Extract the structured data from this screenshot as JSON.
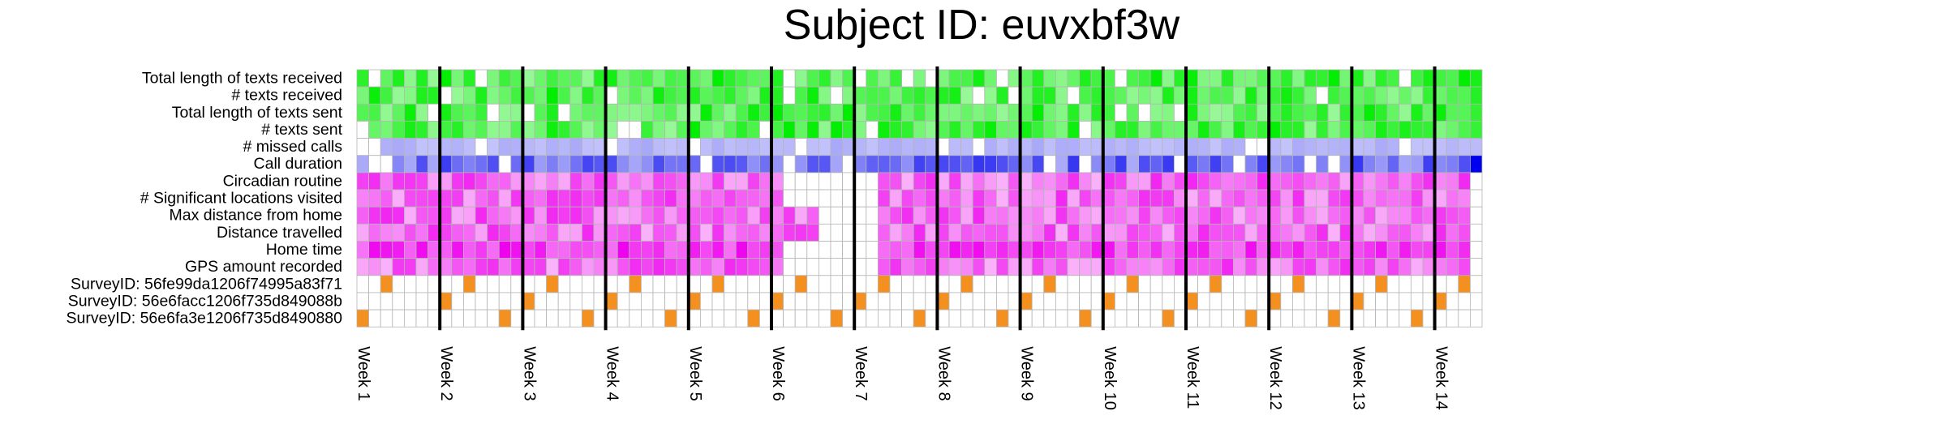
{
  "chart_data": {
    "type": "heatmap",
    "title": "Subject ID: euvxbf3w",
    "rows": [
      "Total length of texts received",
      "# texts received",
      "Total length of texts sent",
      "# texts sent",
      "# missed calls",
      "Call duration",
      "Circadian routine",
      "# Significant locations visited",
      "Max distance from home",
      "Distance travelled",
      "Home time",
      "GPS amount recorded",
      "SurveyID: 56fe99da1206f74995a83f71",
      "SurveyID: 56e6facc1206f735d849088b",
      "SurveyID: 56e6fa3e1206f735d8490880"
    ],
    "weeks": [
      "Week 1",
      "Week 2",
      "Week 3",
      "Week 4",
      "Week 5",
      "Week 6",
      "Week 7",
      "Week 8",
      "Week 9",
      "Week 10",
      "Week 11",
      "Week 12",
      "Week 13",
      "Week 14"
    ],
    "days_per_week": 7,
    "num_days": 95,
    "row_groups": [
      {
        "name": "texts",
        "rows": [
          0,
          1,
          2,
          3
        ],
        "color": "#00ee00"
      },
      {
        "name": "calls",
        "rows": [
          4,
          5
        ],
        "color": "#0000ee"
      },
      {
        "name": "gps",
        "rows": [
          6,
          7,
          8,
          9,
          10,
          11
        ],
        "color": "#ee00ee"
      },
      {
        "name": "surveys",
        "rows": [
          12,
          13,
          14
        ],
        "color": "#f39020"
      }
    ],
    "survey_days": {
      "12": [
        2,
        9,
        16,
        23,
        30,
        37,
        44,
        51,
        58,
        65,
        72,
        79,
        86,
        93
      ],
      "13": [
        7,
        14,
        21,
        28,
        35,
        42,
        49,
        56,
        63,
        70,
        77,
        84,
        91
      ],
      "14": [
        0,
        12,
        19,
        26,
        33,
        40,
        47,
        54,
        61,
        68,
        75,
        82,
        89
      ]
    },
    "gps_missing_days": [
      36,
      37,
      38,
      39,
      40,
      41,
      42,
      43,
      94
    ],
    "grid": true
  }
}
